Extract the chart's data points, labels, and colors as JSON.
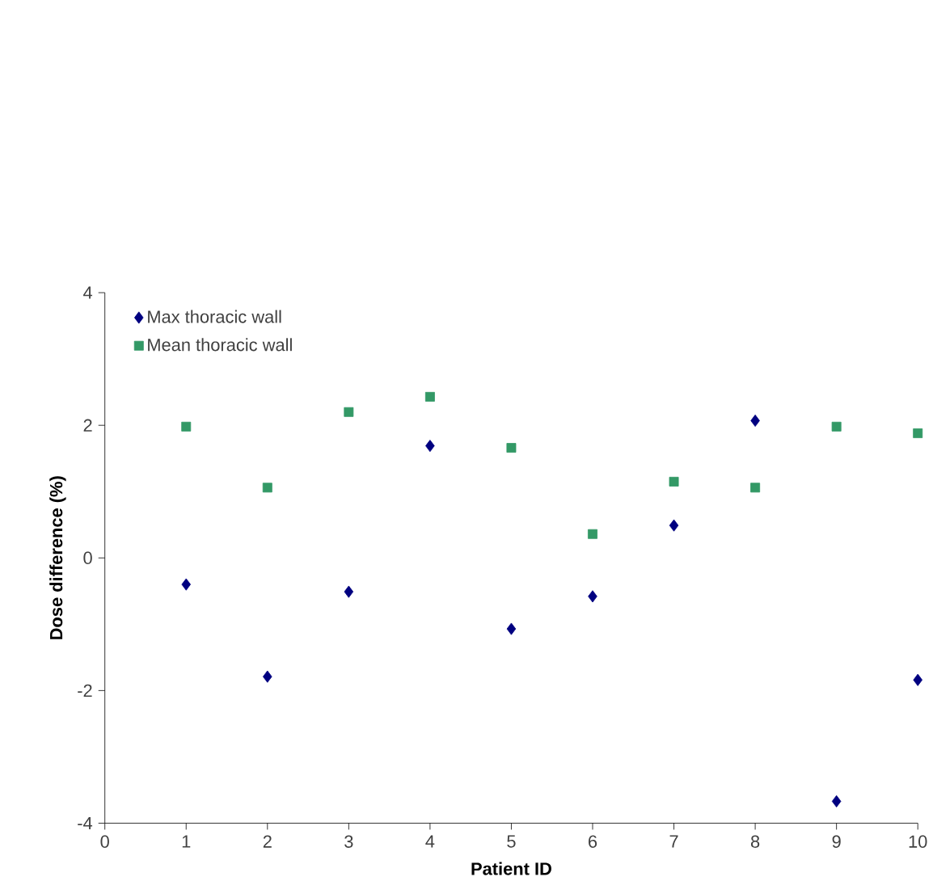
{
  "chart_data": {
    "type": "scatter",
    "xlabel": "Patient ID",
    "ylabel": "Dose difference (%)",
    "x": [
      1,
      2,
      3,
      4,
      5,
      6,
      7,
      8,
      9,
      10
    ],
    "xlim": [
      0,
      10
    ],
    "xticks": [
      0,
      1,
      2,
      3,
      4,
      5,
      6,
      7,
      8,
      9,
      10
    ],
    "ylim": [
      -4,
      4
    ],
    "yticks": [
      -4,
      -2,
      0,
      2,
      4
    ],
    "grid": false,
    "legend": "top left",
    "series": [
      {
        "name": "Max thoracic wall",
        "color": "#000080",
        "marker": "diamond",
        "values": [
          -0.4,
          -1.79,
          -0.51,
          1.69,
          -1.07,
          -0.58,
          0.49,
          2.07,
          -3.67,
          -1.84
        ]
      },
      {
        "name": "Mean thoracic wall",
        "color": "#339966",
        "marker": "square",
        "values": [
          1.98,
          1.06,
          2.2,
          2.43,
          1.66,
          0.36,
          1.15,
          1.06,
          1.98,
          1.88
        ]
      }
    ]
  }
}
